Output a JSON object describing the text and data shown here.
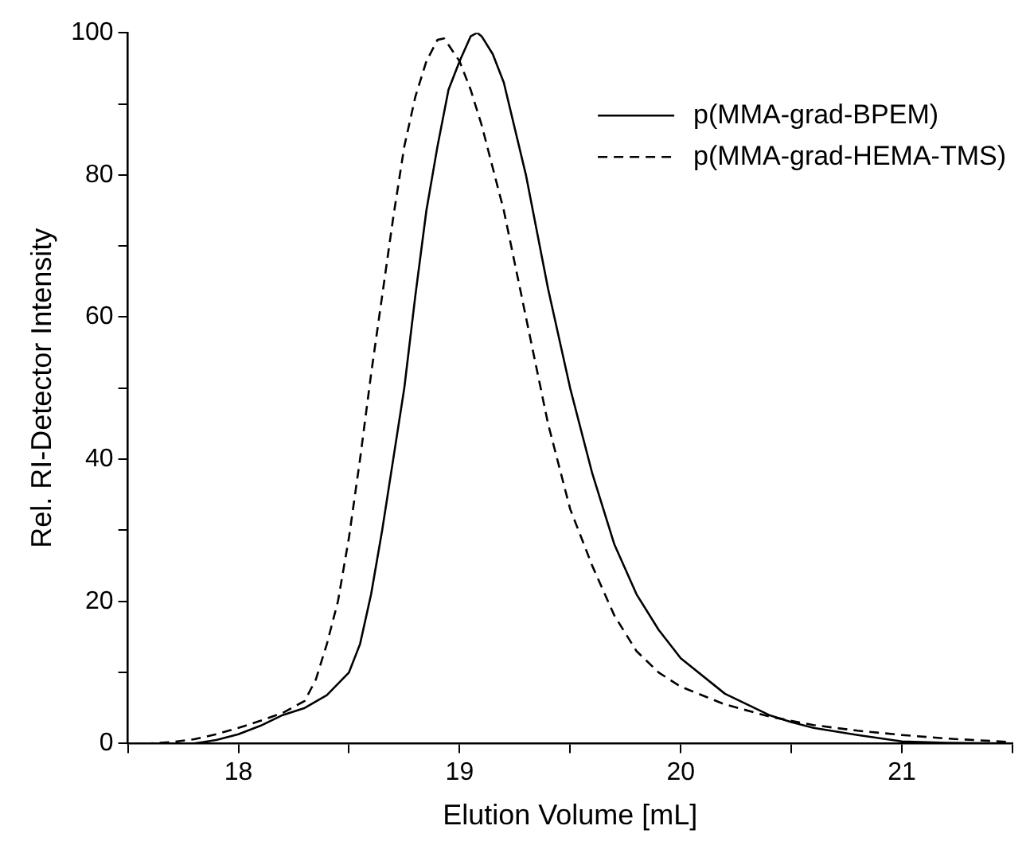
{
  "chart_data": {
    "type": "line",
    "xlabel": "Elution Volume [mL]",
    "ylabel": "Rel. RI-Detector Intensity",
    "xlim": [
      17.5,
      21.5
    ],
    "ylim": [
      0,
      100
    ],
    "xticks": [
      {
        "value": 17.5,
        "label": null
      },
      18,
      {
        "value": 18.5,
        "label": null
      },
      19,
      {
        "value": 19.5,
        "label": null
      },
      20,
      {
        "value": 20.5,
        "label": null
      },
      21,
      {
        "value": 21.5,
        "label": null
      }
    ],
    "yticks": [
      0,
      {
        "value": 10,
        "label": null
      },
      20,
      {
        "value": 30,
        "label": null
      },
      40,
      {
        "value": 50,
        "label": null
      },
      60,
      {
        "value": 70,
        "label": null
      },
      80,
      {
        "value": 90,
        "label": null
      },
      100
    ],
    "grid": false,
    "legend": "top right",
    "marker": "none",
    "series": [
      {
        "name": "p(MMA-grad-BPEM)",
        "color": "#000000",
        "line_style": "solid",
        "x": [
          17.5,
          17.8,
          17.9,
          18.0,
          18.1,
          18.2,
          18.3,
          18.4,
          18.5,
          18.55,
          18.6,
          18.65,
          18.7,
          18.75,
          18.8,
          18.85,
          18.9,
          18.95,
          19.0,
          19.05,
          19.08,
          19.1,
          19.15,
          19.2,
          19.3,
          19.4,
          19.5,
          19.6,
          19.7,
          19.8,
          19.9,
          20.0,
          20.2,
          20.4,
          20.5,
          20.6,
          20.8,
          21.0,
          21.2,
          21.5
        ],
        "values": [
          0,
          0,
          0.5,
          1.3,
          2.5,
          4,
          5,
          6.8,
          10,
          14,
          21,
          30,
          40,
          50,
          63,
          75,
          84,
          92,
          96,
          99.5,
          100,
          99.5,
          97,
          93,
          80,
          64,
          50,
          38,
          28,
          21,
          16,
          12,
          7,
          4,
          3,
          2.2,
          1.2,
          0.3,
          0.1,
          0
        ]
      },
      {
        "name": "p(MMA-grad-HEMA-TMS)",
        "color": "#000000",
        "line_style": "dashed",
        "x": [
          17.5,
          17.6,
          17.7,
          17.8,
          17.9,
          18.0,
          18.1,
          18.2,
          18.3,
          18.35,
          18.4,
          18.45,
          18.5,
          18.55,
          18.6,
          18.65,
          18.7,
          18.75,
          18.8,
          18.85,
          18.9,
          18.93,
          19.0,
          19.05,
          19.1,
          19.2,
          19.3,
          19.4,
          19.5,
          19.6,
          19.7,
          19.8,
          19.9,
          20.0,
          20.2,
          20.4,
          20.6,
          20.8,
          21.0,
          21.2,
          21.5
        ],
        "values": [
          0,
          0,
          0.2,
          0.6,
          1.3,
          2.2,
          3.2,
          4.3,
          6,
          9,
          14,
          20,
          29,
          40,
          52,
          63,
          74,
          84,
          91,
          96,
          99,
          99.2,
          96,
          92,
          87,
          75,
          60,
          45,
          33,
          25,
          18,
          13,
          10,
          8,
          5.5,
          3.8,
          2.6,
          1.8,
          1.2,
          0.7,
          0.2
        ]
      }
    ]
  }
}
